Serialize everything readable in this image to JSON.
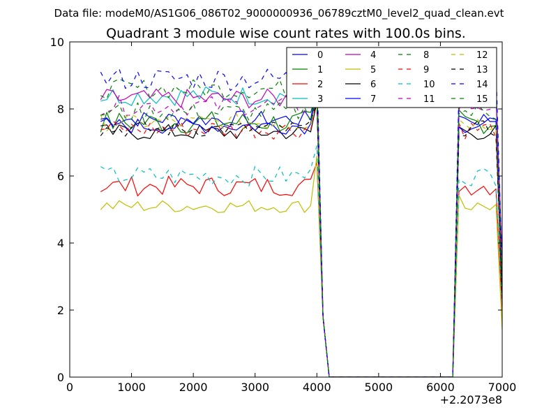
{
  "figure": {
    "suptitle": "Data file: modeM0/AS1G06_086T02_9000000936_06789cztM0_level2_quad_clean.evt"
  },
  "chart_data": {
    "type": "line",
    "title": "Quadrant 3 module wise count rates with 100.0s bins.",
    "xlabel": "",
    "ylabel": "",
    "xlim": [
      0,
      7000
    ],
    "ylim": [
      0,
      10
    ],
    "x_offset_label": "+2.2073e8",
    "x_ticks": [
      0,
      1000,
      2000,
      3000,
      4000,
      5000,
      6000,
      7000
    ],
    "y_ticks": [
      0,
      2,
      4,
      6,
      8,
      10
    ],
    "x_tick_labels": [
      "0",
      "1000",
      "2000",
      "3000",
      "4000",
      "5000",
      "6000",
      "7000"
    ],
    "y_tick_labels": [
      "0",
      "2",
      "4",
      "6",
      "8",
      "10"
    ],
    "legend": {
      "placement": "top-right",
      "columns": 4
    },
    "x": [
      500,
      600,
      700,
      800,
      900,
      1000,
      1100,
      1200,
      1300,
      1400,
      1500,
      1600,
      1700,
      1800,
      1900,
      2000,
      2100,
      2200,
      2300,
      2400,
      2500,
      2600,
      2700,
      2800,
      2900,
      3000,
      3100,
      3200,
      3300,
      3400,
      3500,
      3600,
      3700,
      3800,
      3900,
      4000,
      4100,
      4200,
      4300,
      4400,
      4500,
      4600,
      4700,
      4800,
      4900,
      5000,
      5100,
      5200,
      5300,
      5400,
      5500,
      5600,
      5700,
      5800,
      5900,
      6000,
      6100,
      6200,
      6300,
      6400,
      6500,
      6600,
      6700,
      6800,
      6900,
      7000
    ],
    "segments": [
      {
        "from": 500,
        "to": 3900,
        "level": "base"
      },
      {
        "from": 4000,
        "to": 4000,
        "level": "peak"
      },
      {
        "from": 4100,
        "to": 4100,
        "value": 1.8
      },
      {
        "from": 4200,
        "to": 6200,
        "value": 0
      },
      {
        "from": 6300,
        "to": 6300,
        "level": "mid"
      },
      {
        "from": 6400,
        "to": 6900,
        "level": "base"
      },
      {
        "from": 7000,
        "to": 7000,
        "level": "drop"
      }
    ],
    "series": [
      {
        "name": "0",
        "color": "#0000ff",
        "style": "solid",
        "base": 7.7,
        "noise": 0.25,
        "peak": 8.8,
        "drop": 3.5
      },
      {
        "name": "1",
        "color": "#008000",
        "style": "solid",
        "base": 7.6,
        "noise": 0.35,
        "peak": 8.5,
        "drop": 2.5
      },
      {
        "name": "2",
        "color": "#ff0000",
        "style": "solid",
        "base": 5.7,
        "noise": 0.3,
        "peak": 6.4,
        "drop": 2.0
      },
      {
        "name": "3",
        "color": "#00bfbf",
        "style": "solid",
        "base": 8.4,
        "noise": 0.3,
        "peak": 8.9,
        "drop": 3.0
      },
      {
        "name": "4",
        "color": "#bf00bf",
        "style": "solid",
        "base": 8.3,
        "noise": 0.3,
        "peak": 8.8,
        "drop": 3.5
      },
      {
        "name": "5",
        "color": "#bfbf00",
        "style": "solid",
        "base": 5.1,
        "noise": 0.2,
        "peak": 6.6,
        "drop": 1.4
      },
      {
        "name": "6",
        "color": "#000000",
        "style": "solid",
        "base": 7.3,
        "noise": 0.25,
        "peak": 8.2,
        "drop": 2.2
      },
      {
        "name": "7",
        "color": "#0000ff",
        "style": "solid",
        "base": 7.5,
        "noise": 0.25,
        "peak": 8.5,
        "drop": 3.0
      },
      {
        "name": "8",
        "color": "#008000",
        "style": "dashed",
        "base": 8.6,
        "noise": 0.3,
        "peak": 9.2,
        "drop": 3.0
      },
      {
        "name": "9",
        "color": "#ff0000",
        "style": "dashed",
        "base": 7.4,
        "noise": 0.3,
        "peak": 8.3,
        "drop": 2.8
      },
      {
        "name": "10",
        "color": "#00bfbf",
        "style": "dashed",
        "base": 6.0,
        "noise": 0.3,
        "peak": 6.9,
        "drop": 2.2
      },
      {
        "name": "11",
        "color": "#bf00bf",
        "style": "dashed",
        "base": 8.1,
        "noise": 0.3,
        "peak": 8.7,
        "drop": 3.3
      },
      {
        "name": "12",
        "color": "#bfbf00",
        "style": "dashed",
        "base": 7.6,
        "noise": 0.25,
        "peak": 8.4,
        "drop": 2.6
      },
      {
        "name": "13",
        "color": "#000000",
        "style": "dashed",
        "base": 7.4,
        "noise": 0.25,
        "peak": 8.2,
        "drop": 2.4
      },
      {
        "name": "14",
        "color": "#0000ff",
        "style": "dashed",
        "base": 8.9,
        "noise": 0.35,
        "peak": 9.4,
        "drop": 3.2
      },
      {
        "name": "15",
        "color": "#008000",
        "style": "dashed",
        "base": 7.9,
        "noise": 0.3,
        "peak": 8.6,
        "drop": 2.9
      }
    ]
  }
}
